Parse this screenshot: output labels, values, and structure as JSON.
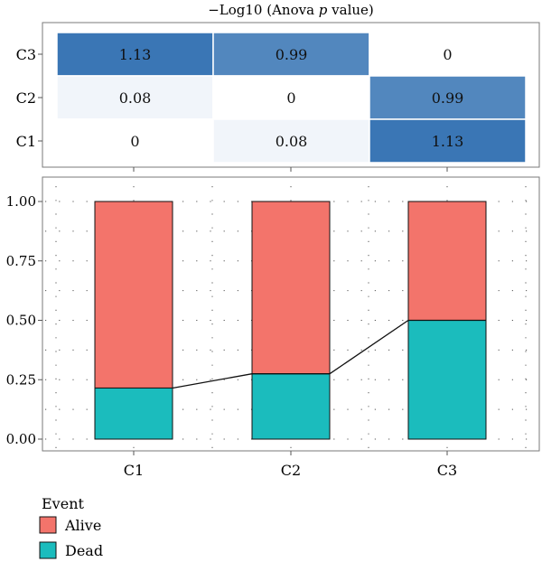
{
  "chart_data": [
    {
      "type": "heatmap",
      "title_prefix": "−Log10 (Anova ",
      "title_italic": "p",
      "title_suffix": " value)",
      "rows": [
        "C3",
        "C2",
        "C1"
      ],
      "columns": [
        "C1",
        "C2",
        "C3"
      ],
      "values": [
        [
          1.13,
          0.99,
          0
        ],
        [
          0.08,
          0,
          0.99
        ],
        [
          0,
          0.08,
          1.13
        ]
      ],
      "color_min": "#ffffff",
      "color_max": "#3a76b5"
    },
    {
      "type": "bar",
      "stacked": true,
      "categories": [
        "C1",
        "C2",
        "C3"
      ],
      "ylim": [
        0,
        1
      ],
      "yticks": [
        "0.00",
        "0.25",
        "0.50",
        "0.75",
        "1.00"
      ],
      "series": [
        {
          "name": "Dead",
          "color": "#1bbcbd",
          "values": [
            0.215,
            0.275,
            0.5
          ]
        },
        {
          "name": "Alive",
          "color": "#f3746b",
          "values": [
            0.785,
            0.725,
            0.5
          ]
        }
      ],
      "connecting_line": true,
      "grid": "dotted",
      "legend_title": "Event",
      "legend_position": "bottom-left"
    }
  ]
}
